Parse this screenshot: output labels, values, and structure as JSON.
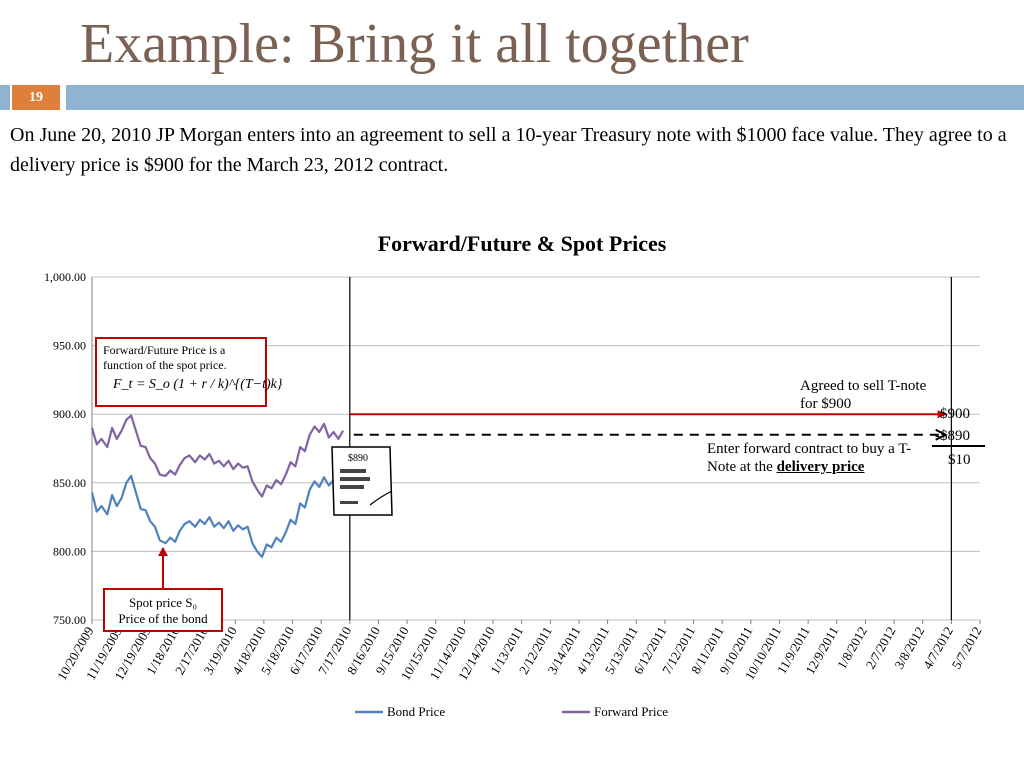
{
  "slide": {
    "title": "Example: Bring it all together",
    "number": "19",
    "intro": "On June 20, 2010 JP Morgan enters into an agreement to sell a 10-year Treasury note with $1000 face value. They agree to a delivery price is $900 for the March 23, 2012 contract."
  },
  "annotations": {
    "formula_caption": "Forward/Future Price is a function of the spot price.",
    "formula": "F_t = S_o (1 + r / k)^{(T−t)k}",
    "spot_line1": "Spot price S₀",
    "spot_line2": "Price of the bond",
    "agreed": "Agreed to sell T-note for $900",
    "enter_prefix": "Enter forward contract to buy a T-Note at the ",
    "enter_bold": "delivery price",
    "value_900": "$900",
    "value_890": "-$890",
    "value_10": "$10",
    "tag_value": "$890"
  },
  "colors": {
    "bond": "#4f81bd",
    "forward": "#8064a2",
    "red": "#c00000",
    "title": "#7b6152",
    "accent_bar": "#8fb3d3",
    "slide_number_bg": "#e07f3c"
  },
  "chart_data": {
    "type": "line",
    "title": "Forward/Future & Spot Prices",
    "ylim": [
      750,
      1000
    ],
    "yticks": [
      "1,000.00",
      "950.00",
      "900.00",
      "850.00",
      "800.00",
      "750.00"
    ],
    "x_tick_labels": [
      "10/20/2009",
      "11/19/2009",
      "12/19/2009",
      "1/18/2010",
      "2/17/2010",
      "3/19/2010",
      "4/18/2010",
      "5/18/2010",
      "6/17/2010",
      "7/17/2010",
      "8/16/2010",
      "9/15/2010",
      "10/15/2010",
      "11/14/2010",
      "12/14/2010",
      "1/13/2011",
      "2/12/2011",
      "3/14/2011",
      "4/13/2011",
      "5/13/2011",
      "6/12/2011",
      "7/12/2011",
      "8/11/2011",
      "9/10/2011",
      "10/10/2011",
      "11/9/2011",
      "12/9/2011",
      "1/8/2012",
      "2/7/2012",
      "3/8/2012",
      "4/7/2012",
      "5/7/2012"
    ],
    "legend": [
      "Bond Price",
      "Forward Price"
    ],
    "legend_position": "bottom",
    "series": [
      {
        "name": "Bond Price",
        "points": [
          [
            "2009-10-20",
            843
          ],
          [
            "2009-10-25",
            829
          ],
          [
            "2009-10-30",
            833
          ],
          [
            "2009-11-05",
            827
          ],
          [
            "2009-11-10",
            841
          ],
          [
            "2009-11-15",
            833
          ],
          [
            "2009-11-20",
            839
          ],
          [
            "2009-11-25",
            850
          ],
          [
            "2009-11-30",
            855
          ],
          [
            "2009-12-05",
            843
          ],
          [
            "2009-12-10",
            831
          ],
          [
            "2009-12-15",
            830
          ],
          [
            "2009-12-20",
            822
          ],
          [
            "2009-12-25",
            818
          ],
          [
            "2009-12-30",
            808
          ],
          [
            "2010-01-05",
            806
          ],
          [
            "2010-01-10",
            810
          ],
          [
            "2010-01-15",
            807
          ],
          [
            "2010-01-20",
            815
          ],
          [
            "2010-01-25",
            820
          ],
          [
            "2010-01-30",
            822
          ],
          [
            "2010-02-05",
            818
          ],
          [
            "2010-02-10",
            823
          ],
          [
            "2010-02-15",
            820
          ],
          [
            "2010-02-20",
            825
          ],
          [
            "2010-02-25",
            818
          ],
          [
            "2010-03-02",
            821
          ],
          [
            "2010-03-07",
            817
          ],
          [
            "2010-03-12",
            822
          ],
          [
            "2010-03-17",
            815
          ],
          [
            "2010-03-22",
            819
          ],
          [
            "2010-03-27",
            816
          ],
          [
            "2010-04-01",
            818
          ],
          [
            "2010-04-06",
            806
          ],
          [
            "2010-04-11",
            800
          ],
          [
            "2010-04-16",
            796
          ],
          [
            "2010-04-21",
            805
          ],
          [
            "2010-04-26",
            803
          ],
          [
            "2010-05-01",
            810
          ],
          [
            "2010-05-06",
            807
          ],
          [
            "2010-05-11",
            814
          ],
          [
            "2010-05-16",
            823
          ],
          [
            "2010-05-21",
            820
          ],
          [
            "2010-05-26",
            835
          ],
          [
            "2010-05-31",
            832
          ],
          [
            "2010-06-05",
            845
          ],
          [
            "2010-06-10",
            851
          ],
          [
            "2010-06-15",
            847
          ],
          [
            "2010-06-20",
            854
          ],
          [
            "2010-06-25",
            848
          ],
          [
            "2010-06-30",
            852
          ],
          [
            "2010-07-05",
            848
          ],
          [
            "2010-07-10",
            855
          ]
        ]
      },
      {
        "name": "Forward Price",
        "points": [
          [
            "2009-10-20",
            890
          ],
          [
            "2009-10-25",
            878
          ],
          [
            "2009-10-30",
            882
          ],
          [
            "2009-11-05",
            876
          ],
          [
            "2009-11-10",
            890
          ],
          [
            "2009-11-15",
            882
          ],
          [
            "2009-11-20",
            888
          ],
          [
            "2009-11-25",
            896
          ],
          [
            "2009-11-30",
            899
          ],
          [
            "2009-12-05",
            888
          ],
          [
            "2009-12-10",
            877
          ],
          [
            "2009-12-15",
            876
          ],
          [
            "2009-12-20",
            868
          ],
          [
            "2009-12-25",
            864
          ],
          [
            "2009-12-30",
            856
          ],
          [
            "2010-01-05",
            855
          ],
          [
            "2010-01-10",
            859
          ],
          [
            "2010-01-15",
            856
          ],
          [
            "2010-01-20",
            863
          ],
          [
            "2010-01-25",
            868
          ],
          [
            "2010-01-30",
            870
          ],
          [
            "2010-02-05",
            865
          ],
          [
            "2010-02-10",
            870
          ],
          [
            "2010-02-15",
            867
          ],
          [
            "2010-02-20",
            871
          ],
          [
            "2010-02-25",
            864
          ],
          [
            "2010-03-02",
            866
          ],
          [
            "2010-03-07",
            862
          ],
          [
            "2010-03-12",
            866
          ],
          [
            "2010-03-17",
            860
          ],
          [
            "2010-03-22",
            864
          ],
          [
            "2010-03-27",
            861
          ],
          [
            "2010-04-01",
            862
          ],
          [
            "2010-04-06",
            851
          ],
          [
            "2010-04-11",
            845
          ],
          [
            "2010-04-16",
            840
          ],
          [
            "2010-04-21",
            848
          ],
          [
            "2010-04-26",
            846
          ],
          [
            "2010-05-01",
            852
          ],
          [
            "2010-05-06",
            849
          ],
          [
            "2010-05-11",
            856
          ],
          [
            "2010-05-16",
            865
          ],
          [
            "2010-05-21",
            862
          ],
          [
            "2010-05-26",
            876
          ],
          [
            "2010-05-31",
            873
          ],
          [
            "2010-06-05",
            885
          ],
          [
            "2010-06-10",
            891
          ],
          [
            "2010-06-15",
            887
          ],
          [
            "2010-06-20",
            893
          ],
          [
            "2010-06-25",
            883
          ],
          [
            "2010-06-30",
            887
          ],
          [
            "2010-07-05",
            882
          ],
          [
            "2010-07-10",
            888
          ]
        ]
      }
    ],
    "reference_lines": [
      {
        "type": "vertical",
        "x": "2010-07-17"
      },
      {
        "type": "vertical",
        "x": "2012-04-07"
      },
      {
        "type": "horizontal",
        "y": 900,
        "from": "2010-07-17",
        "to": "2012-04-01",
        "style": "red-arrow"
      },
      {
        "type": "horizontal",
        "y": 885,
        "from": "2010-07-17",
        "to": "2012-04-01",
        "style": "dashed-arrow"
      }
    ],
    "grid": true
  }
}
